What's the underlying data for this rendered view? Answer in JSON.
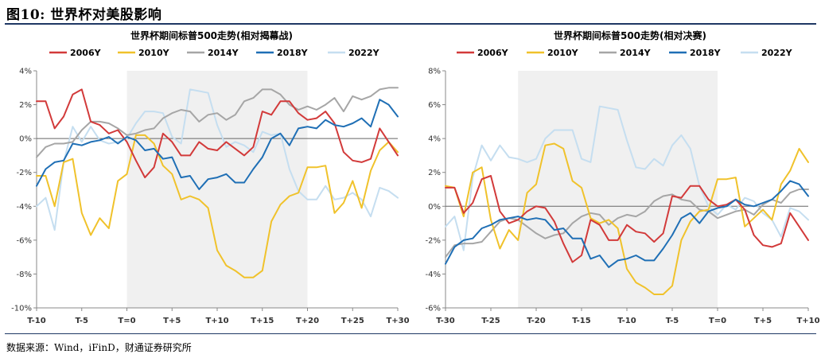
{
  "figure": {
    "title": "图10: 世界杯对美股影响",
    "source": "数据来源：Wind，iFinD，财通证券研究所"
  },
  "colors": {
    "2006Y": "#d23a3a",
    "2010Y": "#f0c22b",
    "2014Y": "#a6a6a6",
    "2018Y": "#1f6fb5",
    "2022Y": "#c5def0",
    "shade": "#f0f0f0",
    "rule": "#1f3864"
  },
  "chart_data": [
    {
      "type": "line",
      "title": "世界杯期间标普500走势(相对揭幕战)",
      "x": [
        -10,
        -9,
        -8,
        -7,
        -6,
        -5,
        -4,
        -3,
        -2,
        -1,
        0,
        1,
        2,
        3,
        4,
        5,
        6,
        7,
        8,
        9,
        10,
        11,
        12,
        13,
        14,
        15,
        16,
        17,
        18,
        19,
        20,
        21,
        22,
        23,
        24,
        25,
        26,
        27,
        28,
        29,
        30
      ],
      "xticks": [
        -10,
        -5,
        0,
        5,
        10,
        15,
        20,
        25,
        30
      ],
      "xtick_labels": [
        "T-10",
        "T-5",
        "T=0",
        "T+5",
        "T+10",
        "T+15",
        "T+20",
        "T+25",
        "T+30"
      ],
      "ylim": [
        -10,
        4
      ],
      "yticks": [
        -10,
        -8,
        -6,
        -4,
        -2,
        0,
        2,
        4
      ],
      "ytick_labels": [
        "-10%",
        "-8%",
        "-6%",
        "-4%",
        "-2%",
        "0%",
        "2%",
        "4%"
      ],
      "shade_range": [
        0,
        20
      ],
      "legend": "top",
      "series": [
        {
          "name": "2006Y",
          "values": [
            2.2,
            2.2,
            0.6,
            1.3,
            2.6,
            2.9,
            1.0,
            0.8,
            0.3,
            0.5,
            -0.2,
            -1.3,
            -2.3,
            -1.7,
            0.3,
            -0.2,
            -1.0,
            -1.0,
            -0.2,
            -0.6,
            -0.7,
            -0.2,
            -0.6,
            -1.0,
            -0.5,
            1.6,
            1.4,
            2.2,
            2.2,
            1.5,
            1.1,
            1.2,
            1.6,
            0.9,
            -0.8,
            -1.3,
            -1.4,
            -1.2,
            0.6,
            -0.2,
            -1.0
          ]
        },
        {
          "name": "2010Y",
          "values": [
            -2.2,
            -2.2,
            -4.0,
            -1.4,
            -1.2,
            -4.4,
            -5.7,
            -4.7,
            -5.3,
            -2.5,
            -2.1,
            0.2,
            0.2,
            -0.3,
            -1.6,
            -2.1,
            -3.6,
            -3.4,
            -3.6,
            -4.1,
            -6.6,
            -7.5,
            -7.8,
            -8.2,
            -8.2,
            -7.8,
            -4.9,
            -3.9,
            -3.4,
            -3.2,
            -1.7,
            -1.7,
            -1.6,
            -4.4,
            -3.8,
            -2.5,
            -4.1,
            -1.9,
            -0.7,
            -0.2,
            -0.8
          ]
        },
        {
          "name": "2014Y",
          "values": [
            -1.1,
            -0.5,
            -0.3,
            -0.3,
            -0.2,
            0.5,
            1.0,
            1.0,
            0.9,
            0.6,
            0.2,
            0.3,
            0.5,
            0.6,
            1.2,
            1.5,
            1.7,
            1.6,
            1.0,
            1.4,
            1.5,
            1.1,
            1.4,
            2.2,
            2.4,
            2.9,
            2.9,
            2.6,
            2.0,
            1.7,
            1.9,
            1.7,
            2.0,
            2.4,
            1.6,
            2.5,
            2.3,
            2.5,
            2.9,
            3.0,
            3.0
          ]
        },
        {
          "name": "2018Y",
          "values": [
            -2.8,
            -1.8,
            -1.4,
            -1.3,
            -0.3,
            -0.4,
            -0.2,
            -0.1,
            0.1,
            -0.3,
            0.1,
            -0.1,
            -0.7,
            -0.6,
            -1.2,
            -1.1,
            -2.3,
            -2.2,
            -3.0,
            -2.4,
            -2.3,
            -2.1,
            -2.6,
            -2.6,
            -1.8,
            -1.1,
            0.0,
            0.3,
            -0.4,
            0.6,
            0.7,
            0.6,
            1.1,
            0.8,
            0.7,
            0.9,
            1.2,
            0.7,
            2.3,
            2.0,
            1.3
          ]
        },
        {
          "name": "2022Y",
          "values": [
            -4.0,
            -3.5,
            -5.4,
            -1.4,
            0.7,
            -0.2,
            0.7,
            -0.1,
            -0.3,
            -0.2,
            0.0,
            0.9,
            1.6,
            1.6,
            1.5,
            0.1,
            -0.3,
            2.9,
            2.8,
            2.7,
            0.8,
            -0.5,
            -0.2,
            -0.4,
            -0.8,
            0.4,
            0.2,
            0.3,
            -1.8,
            -3.1,
            -3.6,
            -3.6,
            -2.8,
            -3.6,
            -3.5,
            -3.2,
            -3.6,
            -4.6,
            -2.9,
            -3.1,
            -3.5
          ]
        }
      ]
    },
    {
      "type": "line",
      "title": "世界杯期间标普500走势(相对决赛)",
      "x": [
        -30,
        -29,
        -28,
        -27,
        -26,
        -25,
        -24,
        -23,
        -22,
        -21,
        -20,
        -19,
        -18,
        -17,
        -16,
        -15,
        -14,
        -13,
        -12,
        -11,
        -10,
        -9,
        -8,
        -7,
        -6,
        -5,
        -4,
        -3,
        -2,
        -1,
        0,
        1,
        2,
        3,
        4,
        5,
        6,
        7,
        8,
        9,
        10
      ],
      "xticks": [
        -30,
        -25,
        -20,
        -15,
        -10,
        -5,
        0,
        5,
        10
      ],
      "xtick_labels": [
        "T-30",
        "T-25",
        "T-20",
        "T-15",
        "T-10",
        "T-5",
        "T=0",
        "T+5",
        "T+10"
      ],
      "ylim": [
        -6,
        8
      ],
      "yticks": [
        -6,
        -4,
        -2,
        0,
        2,
        4,
        6,
        8
      ],
      "ytick_labels": [
        "-6%",
        "-4%",
        "-2%",
        "0%",
        "2%",
        "4%",
        "6%",
        "8%"
      ],
      "shade_range": [
        -22,
        0
      ],
      "legend": "top",
      "series": [
        {
          "name": "2006Y",
          "values": [
            1.1,
            1.1,
            -0.4,
            0.2,
            1.6,
            1.8,
            -0.3,
            -1.0,
            -0.8,
            -0.3,
            0.0,
            -0.1,
            -0.9,
            -2.2,
            -3.3,
            -2.9,
            -0.8,
            -1.1,
            -2.0,
            -2.0,
            -1.1,
            -1.5,
            -1.6,
            -2.1,
            -1.6,
            0.6,
            0.5,
            1.2,
            1.2,
            0.4,
            0.0,
            0.1,
            0.4,
            -0.2,
            -1.7,
            -2.3,
            -2.4,
            -2.2,
            -0.4,
            -1.2,
            -2.0
          ]
        },
        {
          "name": "2010Y",
          "values": [
            1.2,
            1.1,
            -0.6,
            2.0,
            2.3,
            -0.8,
            -2.5,
            -1.4,
            -2.0,
            0.8,
            1.3,
            3.6,
            3.7,
            3.4,
            1.5,
            1.1,
            -0.7,
            -1.0,
            -0.8,
            -1.3,
            -3.7,
            -4.5,
            -4.8,
            -5.2,
            -5.2,
            -4.7,
            -2.0,
            -0.9,
            -0.3,
            -0.2,
            1.6,
            1.6,
            1.7,
            -1.2,
            -0.7,
            -0.2,
            -0.8,
            1.3,
            2.1,
            3.4,
            2.6
          ]
        },
        {
          "name": "2014Y",
          "values": [
            -3.0,
            -2.3,
            -2.2,
            -2.2,
            -2.1,
            -1.5,
            -0.9,
            -0.7,
            -0.8,
            -1.2,
            -1.6,
            -1.9,
            -1.7,
            -1.6,
            -1.0,
            -0.6,
            -0.4,
            -0.5,
            -1.1,
            -0.7,
            -0.5,
            -0.6,
            -0.3,
            0.3,
            0.6,
            0.7,
            0.4,
            0.3,
            -0.2,
            -0.3,
            -0.7,
            -0.5,
            -0.3,
            -0.2,
            -0.5,
            0.1,
            0.4,
            0.2,
            0.8,
            1.0,
            1.0
          ]
        },
        {
          "name": "2018Y",
          "values": [
            -3.4,
            -2.4,
            -2.0,
            -1.9,
            -1.3,
            -1.1,
            -0.8,
            -0.7,
            -0.6,
            -0.8,
            -0.7,
            -0.8,
            -1.4,
            -1.3,
            -1.9,
            -1.9,
            -3.1,
            -2.9,
            -3.6,
            -3.2,
            -3.1,
            -2.9,
            -3.2,
            -3.2,
            -2.5,
            -1.7,
            -0.7,
            -0.4,
            -1.0,
            -0.3,
            -0.1,
            0.0,
            0.4,
            0.1,
            0.0,
            0.2,
            0.4,
            0.9,
            1.5,
            1.3,
            0.6
          ]
        },
        {
          "name": "2022Y",
          "values": [
            -1.2,
            -0.6,
            -2.6,
            1.7,
            3.6,
            2.7,
            3.6,
            2.9,
            2.8,
            2.6,
            2.8,
            4.0,
            4.5,
            4.5,
            4.5,
            2.8,
            2.6,
            5.9,
            5.8,
            5.7,
            3.9,
            2.3,
            2.2,
            2.8,
            2.4,
            3.6,
            4.2,
            3.4,
            1.2,
            0.0,
            -0.5,
            0.1,
            -0.2,
            0.5,
            0.3,
            -0.4,
            -0.8,
            -1.8,
            -0.1,
            -0.3,
            -0.8
          ]
        }
      ]
    }
  ]
}
